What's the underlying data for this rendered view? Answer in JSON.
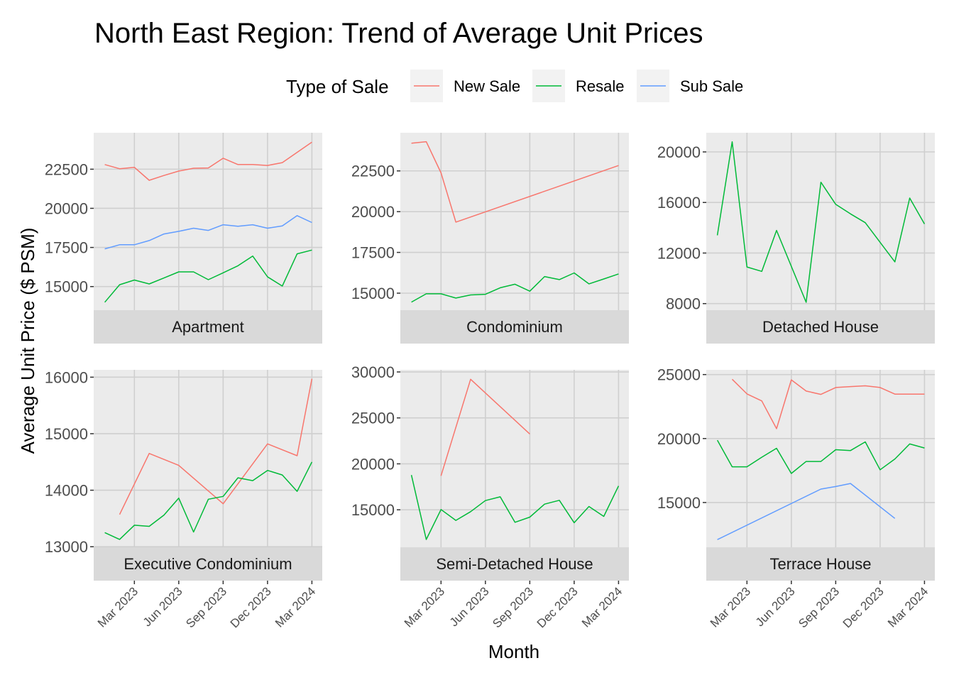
{
  "chart_data": {
    "type": "line",
    "title": "North East Region: Trend of Average Unit Prices",
    "xlabel": "Month",
    "ylabel": "Average Unit Price ($ PSM)",
    "legend": {
      "title": "Type of Sale",
      "placement": "top",
      "entries": [
        {
          "name": "New Sale",
          "color": "#F8766D"
        },
        {
          "name": "Resale",
          "color": "#00BA38"
        },
        {
          "name": "Sub Sale",
          "color": "#619CFF"
        }
      ]
    },
    "x": [
      "Jan 2023",
      "Feb 2023",
      "Mar 2023",
      "Apr 2023",
      "May 2023",
      "Jun 2023",
      "Jul 2023",
      "Aug 2023",
      "Sep 2023",
      "Oct 2023",
      "Nov 2023",
      "Dec 2023",
      "Jan 2024",
      "Feb 2024",
      "Mar 2024"
    ],
    "x_tick_labels": [
      "Mar 2023",
      "Jun 2023",
      "Sep 2023",
      "Dec 2023",
      "Mar 2024"
    ],
    "x_tick_index": [
      2,
      5,
      8,
      11,
      14
    ],
    "xlim_index": [
      -0.75,
      14.7
    ],
    "grid": true,
    "facets": [
      {
        "name": "Apartment",
        "ylim": [
          13490,
          24830
        ],
        "yticks": [
          15000,
          17500,
          20000,
          22500
        ],
        "series": [
          {
            "name": "New Sale",
            "values": [
              22800,
              22530,
              22620,
              21790,
              22100,
              22380,
              22560,
              22580,
              23200,
              22800,
              22800,
              22740,
              22920,
              23580,
              24230
            ]
          },
          {
            "name": "Resale",
            "values": [
              14000,
              15120,
              15420,
              15170,
              15550,
              15940,
              15940,
              15440,
              15880,
              16330,
              16950,
              15620,
              15030,
              17090,
              17330
            ]
          },
          {
            "name": "Sub Sale",
            "values": [
              17410,
              17670,
              17670,
              17940,
              18360,
              18530,
              18730,
              18590,
              18950,
              18850,
              18950,
              18730,
              18880,
              19530,
              19090
            ]
          }
        ]
      },
      {
        "name": "Condominium",
        "ylim": [
          13955,
          24840
        ],
        "yticks": [
          15000,
          17500,
          20000,
          22500
        ],
        "series": [
          {
            "name": "New Sale",
            "values": [
              24200,
              24290,
              22380,
              19360,
              null,
              null,
              null,
              null,
              null,
              null,
              null,
              null,
              null,
              null,
              22830
            ]
          },
          {
            "name": "Resale",
            "values": [
              14450,
              14960,
              14960,
              14700,
              14890,
              14930,
              15330,
              15550,
              15120,
              16020,
              15830,
              16240,
              15570,
              15870,
              16180
            ]
          }
        ]
      },
      {
        "name": "Detached House",
        "ylim": [
          7478,
          21516
        ],
        "yticks": [
          8000,
          12000,
          16000,
          20000
        ],
        "series": [
          {
            "name": "Resale",
            "values": [
              13400,
              20800,
              10900,
              10550,
              13790,
              null,
              8100,
              17600,
              15850,
              15100,
              14400,
              null,
              11300,
              16350,
              14300
            ]
          }
        ]
      },
      {
        "name": "Executive Condominium",
        "ylim": [
          12990,
          16130
        ],
        "yticks": [
          13000,
          14000,
          15000,
          16000
        ],
        "series": [
          {
            "name": "New Sale",
            "values": [
              null,
              13570,
              null,
              14650,
              null,
              14440,
              null,
              null,
              13760,
              null,
              null,
              14820,
              null,
              14610,
              15970
            ]
          },
          {
            "name": "Resale",
            "values": [
              13250,
              13130,
              13380,
              13360,
              13560,
              13860,
              13260,
              13840,
              13890,
              14220,
              14170,
              14350,
              14270,
              13980,
              14500
            ]
          }
        ]
      },
      {
        "name": "Semi-Detached House",
        "ylim": [
          10920,
          30230
        ],
        "yticks": [
          15000,
          20000,
          25000,
          30000
        ],
        "series": [
          {
            "name": "New Sale",
            "values": [
              null,
              null,
              18700,
              null,
              29200,
              null,
              null,
              null,
              23250,
              null,
              null,
              null,
              null,
              null,
              null
            ]
          },
          {
            "name": "Resale",
            "values": [
              18780,
              11770,
              15030,
              13850,
              14800,
              16000,
              16410,
              13640,
              14200,
              15620,
              16030,
              13590,
              15360,
              14280,
              17590
            ]
          }
        ]
      },
      {
        "name": "Terrace House",
        "ylim": [
          11500,
          25370
        ],
        "yticks": [
          15000,
          20000,
          25000
        ],
        "series": [
          {
            "name": "New Sale",
            "values": [
              null,
              24630,
              23490,
              22940,
              20770,
              24590,
              23710,
              23450,
              23990,
              24060,
              24120,
              23990,
              23470,
              23470,
              23470
            ]
          },
          {
            "name": "Resale",
            "values": [
              19870,
              17790,
              17790,
              18540,
              19240,
              17270,
              18210,
              18210,
              19130,
              19060,
              19740,
              17560,
              18400,
              19580,
              19260
            ]
          },
          {
            "name": "Sub Sale",
            "values": [
              12100,
              null,
              null,
              null,
              null,
              null,
              null,
              16050,
              16250,
              16490,
              null,
              null,
              13760,
              null,
              null
            ]
          }
        ]
      }
    ]
  }
}
